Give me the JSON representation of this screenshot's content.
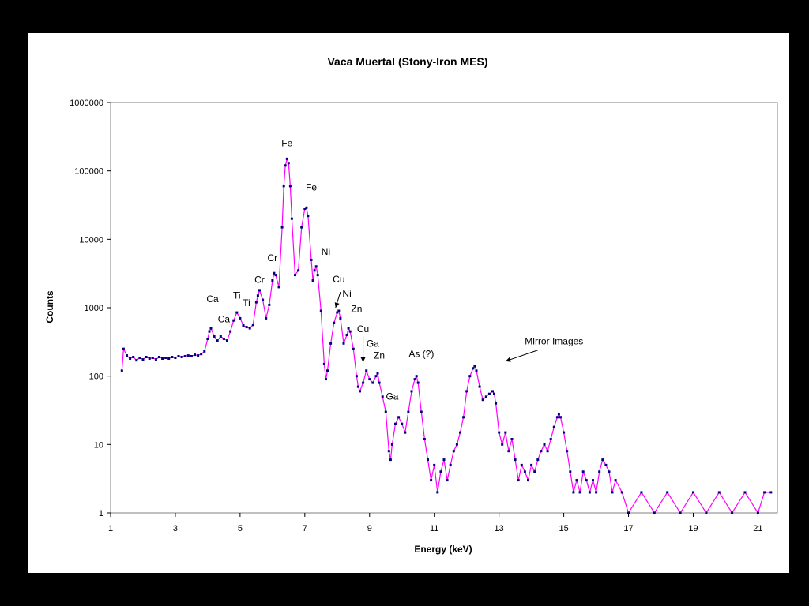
{
  "chart_data": {
    "type": "line",
    "title": "Vaca Muertal (Stony-Iron MES)",
    "xlabel": "Energy (keV)",
    "ylabel": "Counts",
    "xlim": [
      1,
      21.6
    ],
    "ylim": [
      1,
      1000000
    ],
    "yscale": "log",
    "grid": false,
    "xticks": [
      "1",
      "3",
      "5",
      "7",
      "9",
      "11",
      "13",
      "15",
      "17",
      "19",
      "21"
    ],
    "yticks": [
      "1",
      "10",
      "100",
      "1000",
      "10000",
      "100000",
      "1000000"
    ],
    "colors": {
      "line": "#ff00ff",
      "marker": "#000080"
    },
    "series": [
      {
        "points": [
          [
            1.35,
            120
          ],
          [
            1.4,
            250
          ],
          [
            1.5,
            200
          ],
          [
            1.6,
            180
          ],
          [
            1.7,
            190
          ],
          [
            1.8,
            170
          ],
          [
            1.9,
            185
          ],
          [
            2.0,
            175
          ],
          [
            2.1,
            190
          ],
          [
            2.2,
            180
          ],
          [
            2.3,
            185
          ],
          [
            2.4,
            175
          ],
          [
            2.5,
            190
          ],
          [
            2.6,
            180
          ],
          [
            2.7,
            185
          ],
          [
            2.8,
            180
          ],
          [
            2.9,
            190
          ],
          [
            3.0,
            185
          ],
          [
            3.1,
            195
          ],
          [
            3.2,
            190
          ],
          [
            3.3,
            195
          ],
          [
            3.4,
            200
          ],
          [
            3.5,
            195
          ],
          [
            3.6,
            205
          ],
          [
            3.7,
            200
          ],
          [
            3.8,
            210
          ],
          [
            3.9,
            230
          ],
          [
            4.0,
            350
          ],
          [
            4.05,
            450
          ],
          [
            4.1,
            500
          ],
          [
            4.2,
            380
          ],
          [
            4.3,
            330
          ],
          [
            4.4,
            380
          ],
          [
            4.5,
            350
          ],
          [
            4.6,
            330
          ],
          [
            4.7,
            450
          ],
          [
            4.8,
            650
          ],
          [
            4.9,
            850
          ],
          [
            5.0,
            700
          ],
          [
            5.1,
            550
          ],
          [
            5.2,
            520
          ],
          [
            5.3,
            500
          ],
          [
            5.4,
            560
          ],
          [
            5.5,
            1200
          ],
          [
            5.55,
            1500
          ],
          [
            5.6,
            1800
          ],
          [
            5.7,
            1300
          ],
          [
            5.8,
            700
          ],
          [
            5.9,
            1100
          ],
          [
            6.0,
            2500
          ],
          [
            6.05,
            3200
          ],
          [
            6.1,
            3000
          ],
          [
            6.2,
            2000
          ],
          [
            6.3,
            15000
          ],
          [
            6.35,
            60000
          ],
          [
            6.4,
            120000
          ],
          [
            6.45,
            150000
          ],
          [
            6.5,
            130000
          ],
          [
            6.55,
            60000
          ],
          [
            6.6,
            20000
          ],
          [
            6.7,
            3000
          ],
          [
            6.8,
            3500
          ],
          [
            6.9,
            15000
          ],
          [
            7.0,
            28000
          ],
          [
            7.05,
            29000
          ],
          [
            7.1,
            22000
          ],
          [
            7.2,
            5000
          ],
          [
            7.25,
            2500
          ],
          [
            7.3,
            3500
          ],
          [
            7.35,
            4000
          ],
          [
            7.4,
            3000
          ],
          [
            7.5,
            900
          ],
          [
            7.6,
            150
          ],
          [
            7.65,
            90
          ],
          [
            7.7,
            120
          ],
          [
            7.8,
            300
          ],
          [
            7.9,
            600
          ],
          [
            8.0,
            850
          ],
          [
            8.05,
            900
          ],
          [
            8.1,
            700
          ],
          [
            8.2,
            300
          ],
          [
            8.3,
            400
          ],
          [
            8.35,
            500
          ],
          [
            8.4,
            450
          ],
          [
            8.5,
            250
          ],
          [
            8.6,
            100
          ],
          [
            8.65,
            70
          ],
          [
            8.7,
            60
          ],
          [
            8.8,
            80
          ],
          [
            8.9,
            120
          ],
          [
            9.0,
            90
          ],
          [
            9.1,
            80
          ],
          [
            9.2,
            100
          ],
          [
            9.25,
            110
          ],
          [
            9.3,
            80
          ],
          [
            9.4,
            50
          ],
          [
            9.5,
            30
          ],
          [
            9.6,
            8
          ],
          [
            9.65,
            6
          ],
          [
            9.7,
            10
          ],
          [
            9.8,
            20
          ],
          [
            9.9,
            25
          ],
          [
            10.0,
            20
          ],
          [
            10.1,
            15
          ],
          [
            10.2,
            30
          ],
          [
            10.3,
            60
          ],
          [
            10.4,
            90
          ],
          [
            10.45,
            100
          ],
          [
            10.5,
            80
          ],
          [
            10.6,
            30
          ],
          [
            10.7,
            12
          ],
          [
            10.8,
            6
          ],
          [
            10.9,
            3
          ],
          [
            11.0,
            5
          ],
          [
            11.1,
            2
          ],
          [
            11.2,
            4
          ],
          [
            11.3,
            6
          ],
          [
            11.4,
            3
          ],
          [
            11.5,
            5
          ],
          [
            11.6,
            8
          ],
          [
            11.7,
            10
          ],
          [
            11.8,
            15
          ],
          [
            11.9,
            25
          ],
          [
            12.0,
            60
          ],
          [
            12.1,
            100
          ],
          [
            12.2,
            130
          ],
          [
            12.25,
            140
          ],
          [
            12.3,
            120
          ],
          [
            12.4,
            70
          ],
          [
            12.5,
            45
          ],
          [
            12.6,
            50
          ],
          [
            12.7,
            55
          ],
          [
            12.8,
            60
          ],
          [
            12.85,
            55
          ],
          [
            12.9,
            40
          ],
          [
            13.0,
            15
          ],
          [
            13.1,
            10
          ],
          [
            13.2,
            15
          ],
          [
            13.3,
            8
          ],
          [
            13.4,
            12
          ],
          [
            13.5,
            6
          ],
          [
            13.6,
            3
          ],
          [
            13.7,
            5
          ],
          [
            13.8,
            4
          ],
          [
            13.9,
            3
          ],
          [
            14.0,
            5
          ],
          [
            14.1,
            4
          ],
          [
            14.2,
            6
          ],
          [
            14.3,
            8
          ],
          [
            14.4,
            10
          ],
          [
            14.5,
            8
          ],
          [
            14.6,
            12
          ],
          [
            14.7,
            18
          ],
          [
            14.8,
            25
          ],
          [
            14.85,
            28
          ],
          [
            14.9,
            25
          ],
          [
            15.0,
            15
          ],
          [
            15.1,
            8
          ],
          [
            15.2,
            4
          ],
          [
            15.3,
            2
          ],
          [
            15.4,
            3
          ],
          [
            15.5,
            2
          ],
          [
            15.6,
            4
          ],
          [
            15.7,
            3
          ],
          [
            15.8,
            2
          ],
          [
            15.9,
            3
          ],
          [
            16.0,
            2
          ],
          [
            16.1,
            4
          ],
          [
            16.2,
            6
          ],
          [
            16.3,
            5
          ],
          [
            16.4,
            4
          ],
          [
            16.5,
            2
          ],
          [
            16.6,
            3
          ],
          [
            16.8,
            2
          ],
          [
            17.0,
            1
          ],
          [
            17.4,
            2
          ],
          [
            17.8,
            1
          ],
          [
            18.2,
            2
          ],
          [
            18.6,
            1
          ],
          [
            19.0,
            2
          ],
          [
            19.4,
            1
          ],
          [
            19.8,
            2
          ],
          [
            20.2,
            1
          ],
          [
            20.6,
            2
          ],
          [
            21.0,
            1
          ],
          [
            21.2,
            2
          ],
          [
            21.4,
            2
          ]
        ]
      }
    ],
    "annotations": [
      {
        "text": "Ca",
        "x": 4.15,
        "y": 1200
      },
      {
        "text": "Ca",
        "x": 4.5,
        "y": 610
      },
      {
        "text": "Ti",
        "x": 4.9,
        "y": 1350
      },
      {
        "text": "Ti",
        "x": 5.2,
        "y": 1050
      },
      {
        "text": "Cr",
        "x": 5.6,
        "y": 2300
      },
      {
        "text": "Cr",
        "x": 6.0,
        "y": 4800
      },
      {
        "text": "Fe",
        "x": 6.45,
        "y": 230000
      },
      {
        "text": "Fe",
        "x": 7.2,
        "y": 52000
      },
      {
        "text": "Ni",
        "x": 7.65,
        "y": 5900
      },
      {
        "text": "Cu",
        "x": 8.05,
        "y": 2350
      },
      {
        "text": "Ni",
        "x": 8.3,
        "y": 1450
      },
      {
        "text": "Zn",
        "x": 8.6,
        "y": 860
      },
      {
        "text": "Cu",
        "x": 8.8,
        "y": 440
      },
      {
        "text": "Ga",
        "x": 9.1,
        "y": 270
      },
      {
        "text": "Zn",
        "x": 9.3,
        "y": 180
      },
      {
        "text": "Ga",
        "x": 9.7,
        "y": 45
      },
      {
        "text": "As (?)",
        "x": 10.6,
        "y": 190
      },
      {
        "text": "Mirror Images",
        "x": 14.7,
        "y": 290
      }
    ]
  }
}
